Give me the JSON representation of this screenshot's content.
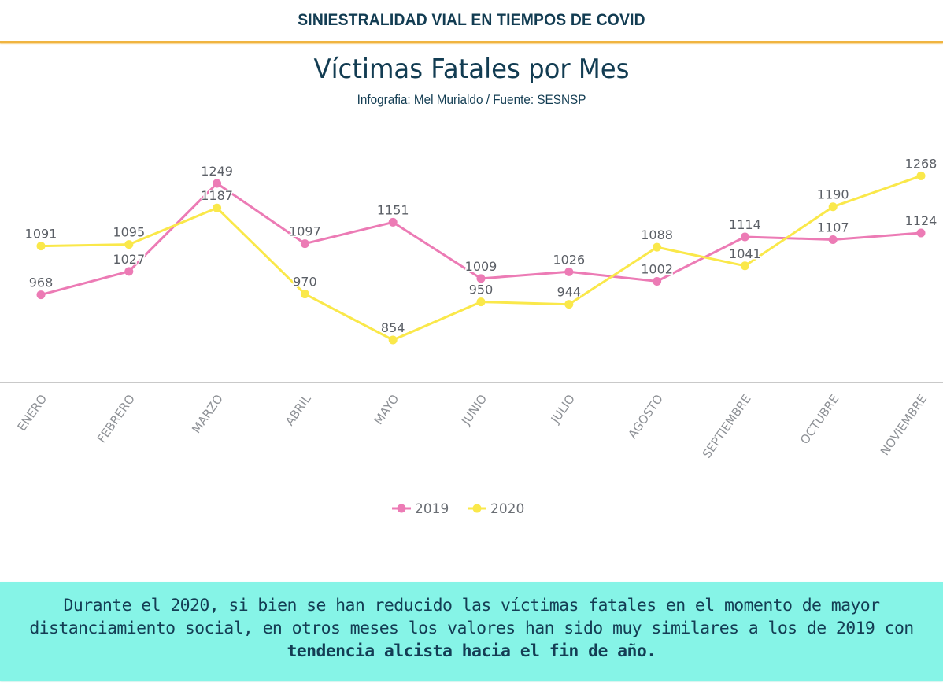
{
  "header": {
    "title": "SINIESTRALIDAD VIAL EN TIEMPOS DE COVID",
    "rule_color": "#f0b440"
  },
  "chart_data": {
    "type": "line",
    "title": "Víctimas Fatales por Mes",
    "subtitle": "Infografia: Mel Murialdo / Fuente: SESNSP",
    "xlabel": "",
    "ylabel": "",
    "categories": [
      "ENERO",
      "FEBRERO",
      "MARZO",
      "ABRIL",
      "MAYO",
      "JUNIO",
      "JULIO",
      "AGOSTO",
      "SEPTIEMBRE",
      "OCTUBRE",
      "NOVIEMBRE"
    ],
    "series": [
      {
        "name": "2019",
        "color": "#ec7bb5",
        "values": [
          968,
          1027,
          1249,
          1097,
          1151,
          1009,
          1026,
          1002,
          1114,
          1107,
          1124
        ]
      },
      {
        "name": "2020",
        "color": "#fae84a",
        "values": [
          1091,
          1095,
          1187,
          970,
          854,
          950,
          944,
          1088,
          1041,
          1190,
          1268
        ]
      }
    ],
    "data_labels": true,
    "grid": false,
    "y_axis_visible": false,
    "legend_position": "bottom-center",
    "x_tick_rotation": "diagonal"
  },
  "footer": {
    "line1": "Durante el 2020, si bien se han reducido las víctimas fatales en el momento de mayor",
    "line2": "distanciamiento social, en otros meses los valores han sido muy similares a los de 2019 con",
    "line3_bold": "tendencia alcista hacia el fin de año.",
    "background_color": "#86f4e7"
  }
}
